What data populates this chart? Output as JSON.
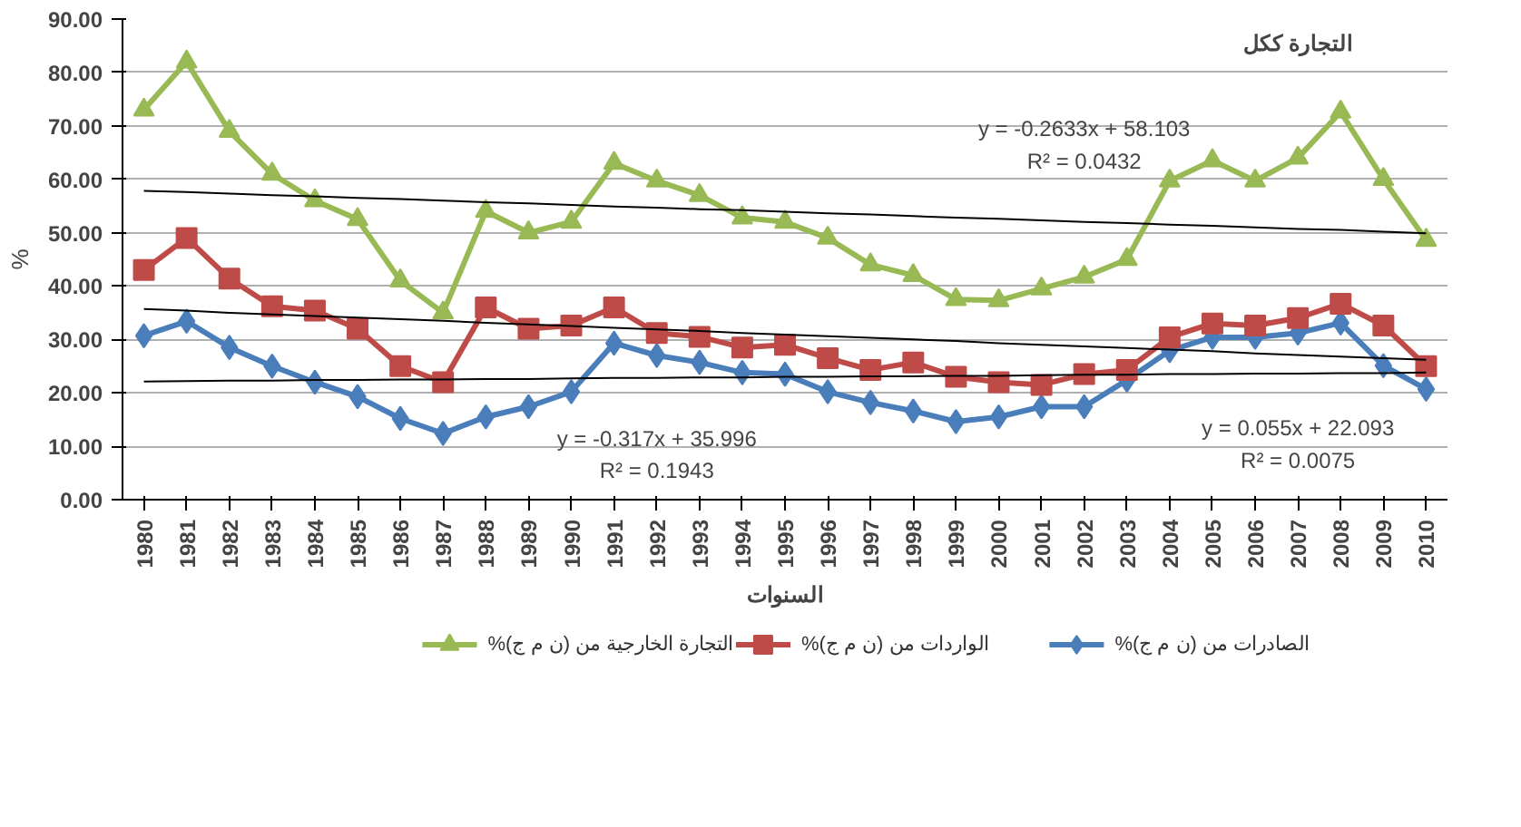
{
  "chart_data": {
    "type": "line",
    "ylabel": "%",
    "xlabel": "السنوات",
    "categories": [
      "1980",
      "1981",
      "1982",
      "1983",
      "1984",
      "1985",
      "1986",
      "1987",
      "1988",
      "1989",
      "1990",
      "1991",
      "1992",
      "1993",
      "1994",
      "1995",
      "1996",
      "1997",
      "1998",
      "1999",
      "2000",
      "2001",
      "2002",
      "2003",
      "2004",
      "2005",
      "2006",
      "2007",
      "2008",
      "2009",
      "2010"
    ],
    "series": [
      {
        "name": "%الصادرات من (ن م ج)",
        "color": "#4a7ebb",
        "marker": "diamond",
        "values": [
          30.7,
          33.4,
          28.5,
          25,
          22,
          19.3,
          15.2,
          12.4,
          15.5,
          17.4,
          20.2,
          29.3,
          27,
          25.7,
          23.8,
          23.5,
          20.2,
          18.2,
          16.6,
          14.6,
          15.5,
          17.4,
          17.4,
          22.4,
          27.9,
          30.4,
          30.4,
          31.2,
          33.1,
          25.1,
          20.7
        ]
      },
      {
        "name": "%الواردات من (ن م ج)",
        "color": "#be4b48",
        "marker": "square",
        "values": [
          43,
          49,
          41.4,
          36.2,
          35.4,
          32,
          25,
          22,
          36,
          32,
          32.6,
          36,
          31.2,
          30.5,
          28.5,
          29,
          26.5,
          24.3,
          25.7,
          23,
          22,
          21.5,
          23.5,
          24.3,
          30.4,
          33,
          32.6,
          34,
          36.7,
          32.6,
          25
        ]
      },
      {
        "name": "%التجارة الخارجية من (ن م ج)",
        "color": "#98b954",
        "marker": "triangle",
        "values": [
          73,
          82,
          69,
          61,
          56,
          52.5,
          41,
          35,
          54,
          50,
          52,
          63,
          59.7,
          57,
          52.8,
          52,
          49,
          44,
          42,
          37.5,
          37.3,
          39.5,
          41.7,
          45,
          59.7,
          63.5,
          59.7,
          64,
          72.6,
          60,
          48.6
        ]
      },
      {
        "type": "line",
        "color": "#000000",
        "marker": "none",
        "values": [
          57.8,
          57.6,
          57.3,
          57.0,
          56.8,
          56.5,
          56.3,
          56.0,
          55.7,
          55.5,
          55.2,
          54.9,
          54.7,
          54.4,
          54.2,
          53.9,
          53.6,
          53.4,
          53.1,
          52.8,
          52.6,
          52.3,
          52.0,
          51.8,
          51.5,
          51.3,
          51.0,
          50.7,
          50.5,
          50.2,
          49.9
        ]
      },
      {
        "type": "line",
        "color": "#000000",
        "marker": "none",
        "values": [
          35.7,
          35.4,
          35.0,
          34.7,
          34.4,
          34.1,
          33.8,
          33.5,
          33.1,
          32.8,
          32.5,
          32.2,
          31.9,
          31.6,
          31.2,
          30.9,
          30.6,
          30.3,
          30.0,
          29.7,
          29.3,
          29.0,
          28.7,
          28.4,
          28.1,
          27.8,
          27.4,
          27.1,
          26.8,
          26.5,
          26.2
        ]
      },
      {
        "type": "line",
        "color": "#000000",
        "marker": "none",
        "values": [
          22.1,
          22.2,
          22.3,
          22.3,
          22.4,
          22.4,
          22.5,
          22.5,
          22.6,
          22.6,
          22.7,
          22.8,
          22.8,
          22.9,
          22.9,
          23.0,
          23.0,
          23.1,
          23.1,
          23.2,
          23.2,
          23.3,
          23.4,
          23.4,
          23.5,
          23.5,
          23.6,
          23.6,
          23.7,
          23.7,
          23.8
        ]
      }
    ],
    "ylim": [
      0,
      90
    ],
    "yticks": [
      {
        "value": 0,
        "label": "0.00"
      },
      {
        "value": 10,
        "label": "10.00"
      },
      {
        "value": 20,
        "label": "20.00"
      },
      {
        "value": 30,
        "label": "30.00"
      },
      {
        "value": 40,
        "label": "40.00"
      },
      {
        "value": 50,
        "label": "50.00"
      },
      {
        "value": 60,
        "label": "60.00"
      },
      {
        "value": 70,
        "label": "70.00"
      },
      {
        "value": 80,
        "label": "80.00"
      },
      {
        "value": 90,
        "label": "90.00"
      }
    ],
    "grid": "y",
    "legend": "bottom",
    "annotations": [
      "التجارة ككل",
      "y = -0.2633x + 58.103",
      "R² = 0.0432",
      "y = -0.317x + 35.996",
      "R² = 0.1943",
      "y = 0.055x + 22.093",
      "R² = 0.0075"
    ]
  }
}
